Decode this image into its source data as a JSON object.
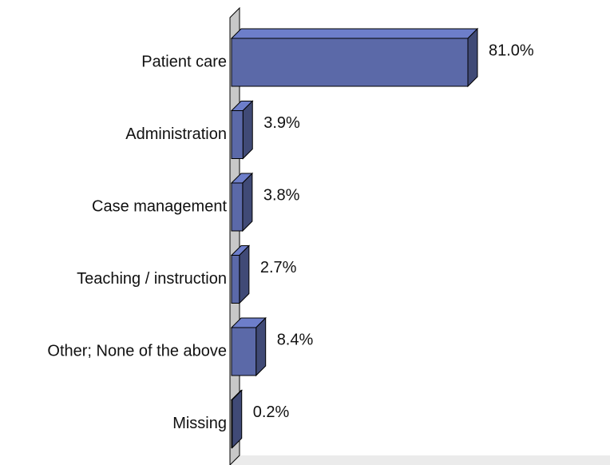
{
  "chart_data": {
    "type": "bar",
    "orientation": "horizontal",
    "categories": [
      "Patient care",
      "Administration",
      "Case management",
      "Teaching / instruction",
      "Other; None of the above",
      "Missing"
    ],
    "values": [
      81.0,
      3.9,
      3.8,
      2.7,
      8.4,
      0.2
    ],
    "value_labels": [
      "81.0%",
      "3.9%",
      "3.8%",
      "2.7%",
      "8.4%",
      "0.2%"
    ],
    "color": "#5b69a8"
  }
}
